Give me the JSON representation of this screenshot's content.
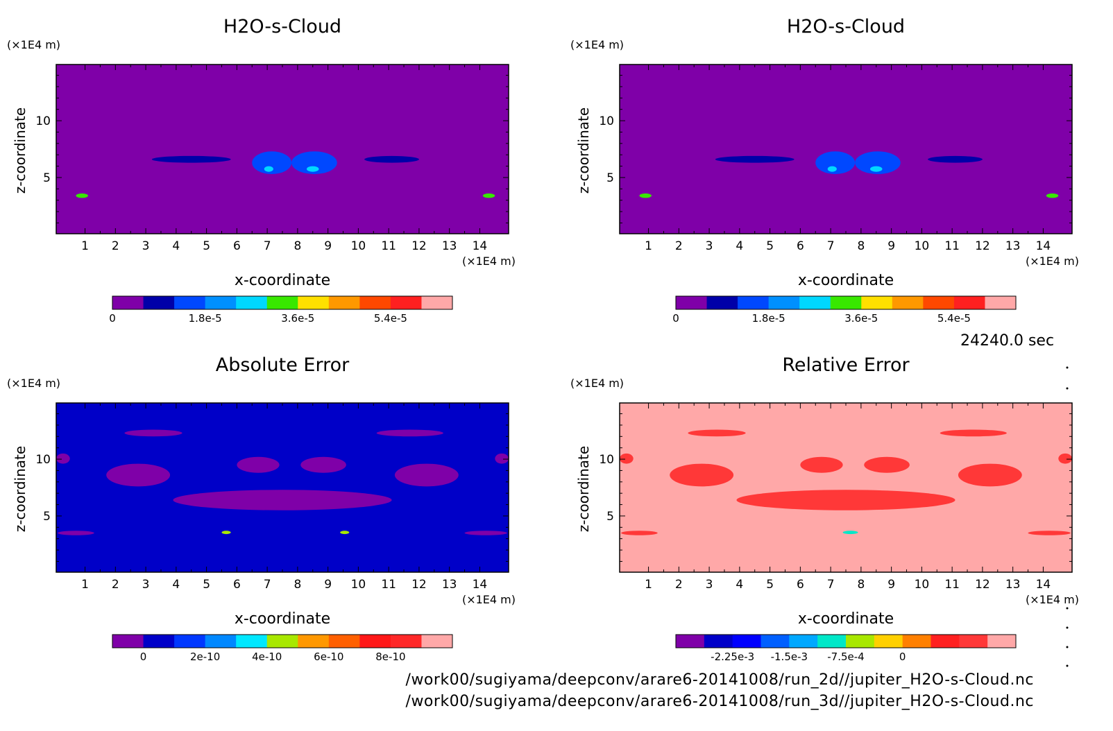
{
  "time_stamp": "24240.0 sec",
  "files": [
    "/work00/sugiyama/deepconv/arare6-20141008/run_2d//jupiter_H2O-s-Cloud.nc",
    "/work00/sugiyama/deepconv/arare6-20141008/run_3d//jupiter_H2O-s-Cloud.nc"
  ],
  "chart_data": [
    {
      "type": "heatmap",
      "title": "H2O-s-Cloud",
      "xlabel": "x-coordinate",
      "ylabel": "z-coordinate",
      "x_unit": "(×1E4 m)",
      "y_unit": "(×1E4 m)",
      "xlim": [
        0.05,
        14.95
      ],
      "ylim": [
        0.05,
        14.95
      ],
      "x_ticks": [
        1,
        2,
        3,
        4,
        5,
        6,
        7,
        8,
        9,
        10,
        11,
        12,
        13,
        14
      ],
      "y_ticks": [
        5,
        10
      ],
      "background_level": 0,
      "colorbar": {
        "colors": [
          "#7f00a8",
          "#0000a8",
          "#0048ff",
          "#0090ff",
          "#00d8ff",
          "#38e800",
          "#ffe000",
          "#ff9800",
          "#ff4800",
          "#ff2020",
          "#ffa8a8"
        ],
        "tick_labels": [
          "0",
          "1.8e-5",
          "3.6e-5",
          "5.4e-5"
        ],
        "tick_positions": [
          0,
          3,
          6,
          9
        ]
      },
      "features": [
        {
          "kind": "band",
          "x": [
            3.2,
            5.8
          ],
          "z": [
            6.3,
            6.9
          ],
          "level": 1
        },
        {
          "kind": "band",
          "x": [
            10.2,
            12.0
          ],
          "z": [
            6.3,
            6.9
          ],
          "level": 1
        },
        {
          "kind": "blob",
          "x": [
            6.5,
            7.8
          ],
          "z": [
            5.3,
            7.3
          ],
          "level": 2
        },
        {
          "kind": "blob",
          "x": [
            7.8,
            9.3
          ],
          "z": [
            5.3,
            7.3
          ],
          "level": 2
        },
        {
          "kind": "spot",
          "x": [
            6.9,
            7.2
          ],
          "z": [
            5.5,
            6.0
          ],
          "level": 4
        },
        {
          "kind": "spot",
          "x": [
            8.3,
            8.7
          ],
          "z": [
            5.5,
            6.0
          ],
          "level": 4
        },
        {
          "kind": "spot",
          "x": [
            0.7,
            1.1
          ],
          "z": [
            3.2,
            3.6
          ],
          "level": 5
        },
        {
          "kind": "spot",
          "x": [
            14.1,
            14.5
          ],
          "z": [
            3.2,
            3.6
          ],
          "level": 5
        }
      ]
    },
    {
      "type": "heatmap",
      "title": "H2O-s-Cloud",
      "xlabel": "x-coordinate",
      "ylabel": "z-coordinate",
      "x_unit": "(×1E4 m)",
      "y_unit": "(×1E4 m)",
      "xlim": [
        0.05,
        14.95
      ],
      "ylim": [
        0.05,
        14.95
      ],
      "x_ticks": [
        1,
        2,
        3,
        4,
        5,
        6,
        7,
        8,
        9,
        10,
        11,
        12,
        13,
        14
      ],
      "y_ticks": [
        5,
        10
      ],
      "background_level": 0,
      "colorbar": {
        "colors": [
          "#7f00a8",
          "#0000a8",
          "#0048ff",
          "#0090ff",
          "#00d8ff",
          "#38e800",
          "#ffe000",
          "#ff9800",
          "#ff4800",
          "#ff2020",
          "#ffa8a8"
        ],
        "tick_labels": [
          "0",
          "1.8e-5",
          "3.6e-5",
          "5.4e-5"
        ],
        "tick_positions": [
          0,
          3,
          6,
          9
        ]
      },
      "features": [
        {
          "kind": "band",
          "x": [
            3.2,
            5.8
          ],
          "z": [
            6.3,
            6.9
          ],
          "level": 1
        },
        {
          "kind": "band",
          "x": [
            10.2,
            12.0
          ],
          "z": [
            6.3,
            6.9
          ],
          "level": 1
        },
        {
          "kind": "blob",
          "x": [
            6.5,
            7.8
          ],
          "z": [
            5.3,
            7.3
          ],
          "level": 2
        },
        {
          "kind": "blob",
          "x": [
            7.8,
            9.3
          ],
          "z": [
            5.3,
            7.3
          ],
          "level": 2
        },
        {
          "kind": "spot",
          "x": [
            6.9,
            7.2
          ],
          "z": [
            5.5,
            6.0
          ],
          "level": 4
        },
        {
          "kind": "spot",
          "x": [
            8.3,
            8.7
          ],
          "z": [
            5.5,
            6.0
          ],
          "level": 4
        },
        {
          "kind": "spot",
          "x": [
            0.7,
            1.1
          ],
          "z": [
            3.2,
            3.6
          ],
          "level": 5
        },
        {
          "kind": "spot",
          "x": [
            14.1,
            14.5
          ],
          "z": [
            3.2,
            3.6
          ],
          "level": 5
        }
      ]
    },
    {
      "type": "heatmap",
      "title": "Absolute Error",
      "xlabel": "x-coordinate",
      "ylabel": "z-coordinate",
      "x_unit": "(×1E4 m)",
      "y_unit": "(×1E4 m)",
      "xlim": [
        0.05,
        14.95
      ],
      "ylim": [
        0.05,
        14.95
      ],
      "x_ticks": [
        1,
        2,
        3,
        4,
        5,
        6,
        7,
        8,
        9,
        10,
        11,
        12,
        13,
        14
      ],
      "y_ticks": [
        5,
        10
      ],
      "background_level": 1,
      "colorbar": {
        "colors": [
          "#7f00a8",
          "#0000c8",
          "#0038ff",
          "#0088ff",
          "#00e8ff",
          "#a8e800",
          "#ff9800",
          "#ff6000",
          "#ff1818",
          "#ff2828",
          "#ffa8a8"
        ],
        "tick_labels": [
          "0",
          "2e-10",
          "4e-10",
          "6e-10",
          "8e-10"
        ],
        "tick_positions": [
          1,
          3,
          5,
          7,
          9
        ]
      },
      "features": [
        {
          "kind": "blob",
          "x": [
            2.3,
            4.2
          ],
          "z": [
            12.0,
            12.6
          ],
          "level": 0
        },
        {
          "kind": "blob",
          "x": [
            10.6,
            12.8
          ],
          "z": [
            12.0,
            12.6
          ],
          "level": 0
        },
        {
          "kind": "blob",
          "x": [
            1.7,
            3.8
          ],
          "z": [
            7.6,
            9.6
          ],
          "level": 0
        },
        {
          "kind": "blob",
          "x": [
            11.2,
            13.3
          ],
          "z": [
            7.6,
            9.6
          ],
          "level": 0
        },
        {
          "kind": "blob",
          "x": [
            6.0,
            7.4
          ],
          "z": [
            8.8,
            10.2
          ],
          "level": 0
        },
        {
          "kind": "blob",
          "x": [
            8.1,
            9.6
          ],
          "z": [
            8.8,
            10.2
          ],
          "level": 0
        },
        {
          "kind": "band",
          "x": [
            3.9,
            11.1
          ],
          "z": [
            5.5,
            7.3
          ],
          "level": 0
        },
        {
          "kind": "spot",
          "x": [
            0.05,
            0.5
          ],
          "z": [
            9.6,
            10.5
          ],
          "level": 0
        },
        {
          "kind": "spot",
          "x": [
            14.5,
            14.95
          ],
          "z": [
            9.6,
            10.5
          ],
          "level": 0
        },
        {
          "kind": "spot",
          "x": [
            0.1,
            1.3
          ],
          "z": [
            3.3,
            3.7
          ],
          "level": 0
        },
        {
          "kind": "spot",
          "x": [
            13.5,
            14.9
          ],
          "z": [
            3.3,
            3.7
          ],
          "level": 0
        },
        {
          "kind": "spot",
          "x": [
            5.5,
            5.8
          ],
          "z": [
            3.4,
            3.7
          ],
          "level": 5
        },
        {
          "kind": "spot",
          "x": [
            9.4,
            9.7
          ],
          "z": [
            3.4,
            3.7
          ],
          "level": 5
        }
      ]
    },
    {
      "type": "heatmap",
      "title": "Relative Error",
      "xlabel": "x-coordinate",
      "ylabel": "z-coordinate",
      "x_unit": "(×1E4 m)",
      "y_unit": "(×1E4 m)",
      "xlim": [
        0.05,
        14.95
      ],
      "ylim": [
        0.05,
        14.95
      ],
      "x_ticks": [
        1,
        2,
        3,
        4,
        5,
        6,
        7,
        8,
        9,
        10,
        11,
        12,
        13,
        14
      ],
      "y_ticks": [
        5,
        10
      ],
      "background_level": 11,
      "colorbar": {
        "colors": [
          "#7f00a8",
          "#0000c8",
          "#0000ff",
          "#0060ff",
          "#00a8ff",
          "#00e8c8",
          "#a8e800",
          "#ffd000",
          "#ff8000",
          "#ff2020",
          "#ff3838",
          "#ffa8a8"
        ],
        "tick_labels": [
          "-2.25e-3",
          "-1.5e-3",
          "-7.5e-4",
          "0"
        ],
        "tick_positions": [
          2,
          4,
          6,
          8
        ]
      },
      "features": [
        {
          "kind": "blob",
          "x": [
            2.3,
            4.2
          ],
          "z": [
            12.0,
            12.6
          ],
          "level": 10
        },
        {
          "kind": "blob",
          "x": [
            10.6,
            12.8
          ],
          "z": [
            12.0,
            12.6
          ],
          "level": 10
        },
        {
          "kind": "blob",
          "x": [
            1.7,
            3.8
          ],
          "z": [
            7.6,
            9.6
          ],
          "level": 10
        },
        {
          "kind": "blob",
          "x": [
            11.2,
            13.3
          ],
          "z": [
            7.6,
            9.6
          ],
          "level": 10
        },
        {
          "kind": "blob",
          "x": [
            6.0,
            7.4
          ],
          "z": [
            8.8,
            10.2
          ],
          "level": 10
        },
        {
          "kind": "blob",
          "x": [
            8.1,
            9.6
          ],
          "z": [
            8.8,
            10.2
          ],
          "level": 10
        },
        {
          "kind": "band",
          "x": [
            3.9,
            11.1
          ],
          "z": [
            5.5,
            7.3
          ],
          "level": 10
        },
        {
          "kind": "spot",
          "x": [
            0.05,
            0.5
          ],
          "z": [
            9.6,
            10.5
          ],
          "level": 10
        },
        {
          "kind": "spot",
          "x": [
            14.5,
            14.95
          ],
          "z": [
            9.6,
            10.5
          ],
          "level": 10
        },
        {
          "kind": "spot",
          "x": [
            0.1,
            1.3
          ],
          "z": [
            3.3,
            3.7
          ],
          "level": 10
        },
        {
          "kind": "spot",
          "x": [
            13.5,
            14.9
          ],
          "z": [
            3.3,
            3.7
          ],
          "level": 10
        },
        {
          "kind": "spot",
          "x": [
            7.4,
            7.9
          ],
          "z": [
            3.4,
            3.7
          ],
          "level": 5
        }
      ]
    }
  ]
}
